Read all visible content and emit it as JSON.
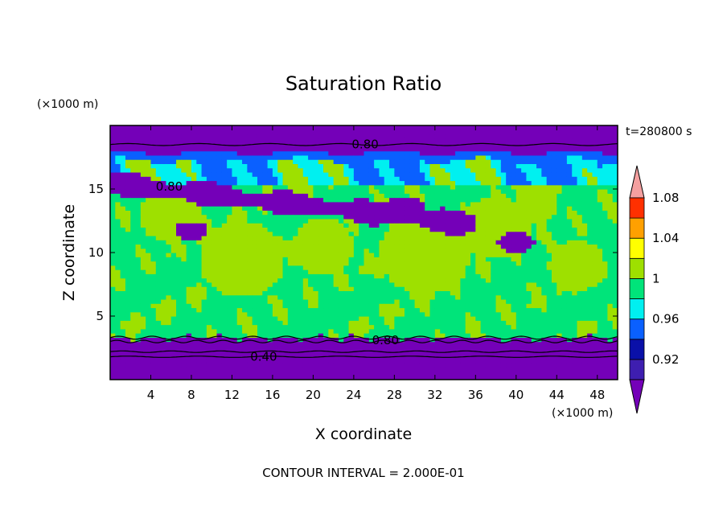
{
  "chart_data": {
    "type": "heatmap",
    "title": "Saturation Ratio",
    "xlabel": "X coordinate",
    "ylabel": "Z coordinate",
    "x_unit": "(×1000 m)",
    "y_unit": "(×1000 m)",
    "time_label": "t=280800 s",
    "footer": "CONTOUR INTERVAL = 2.000E-01",
    "xlim": [
      0,
      50
    ],
    "ylim": [
      0,
      20
    ],
    "x_ticks": [
      4,
      8,
      12,
      16,
      20,
      24,
      28,
      32,
      36,
      40,
      44,
      48
    ],
    "y_ticks": [
      5,
      10,
      15
    ],
    "colorbar": {
      "levels": [
        0.9,
        0.92,
        0.94,
        0.96,
        0.98,
        1.0,
        1.02,
        1.04,
        1.06,
        1.08,
        1.1
      ],
      "labels": [
        "0.92",
        "0.96",
        "1",
        "1.04",
        "1.08"
      ],
      "label_values": [
        0.92,
        0.96,
        1.0,
        1.04,
        1.08
      ],
      "colors": [
        "#7400b8",
        "#3e1eb0",
        "#0a10a8",
        "#0a60ff",
        "#00f0f0",
        "#00e47a",
        "#9ee000",
        "#ffff00",
        "#ffa000",
        "#ff3000",
        "#f4a0a0"
      ]
    },
    "contour_labels": [
      {
        "text": "0.80",
        "x": 23.8,
        "y": 18.5
      },
      {
        "text": "0.80",
        "x": 4.5,
        "y": 15.2
      },
      {
        "text": "0.80",
        "x": 25.8,
        "y": 3.1
      },
      {
        "text": "0.40",
        "x": 13.8,
        "y": 1.8
      }
    ],
    "fields": {
      "lower_dry_layer_top": 3.3,
      "upper_dry_layer_base": 17.3,
      "main_value": 0.98,
      "supersaturated_patch_value": 1.01,
      "dry_band_value": 0.85
    }
  }
}
